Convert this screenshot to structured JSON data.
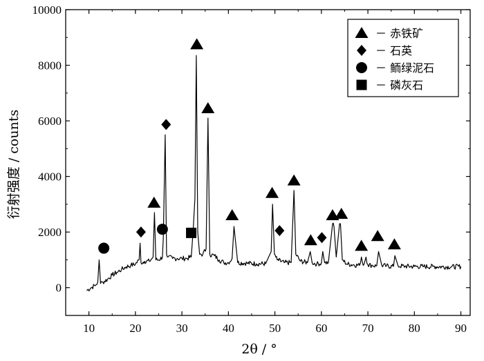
{
  "chart_data": {
    "type": "line",
    "title": "",
    "xlabel": "2θ / °",
    "ylabel": "衍射强度 / counts",
    "xlim": [
      5,
      92
    ],
    "ylim": [
      -1000,
      10000
    ],
    "x_ticks": [
      10,
      20,
      30,
      40,
      50,
      60,
      70,
      80,
      90
    ],
    "y_ticks": [
      0,
      2000,
      4000,
      6000,
      8000,
      10000
    ],
    "x_tick_labels": [
      "10",
      "20",
      "30",
      "40",
      "50",
      "60",
      "70",
      "80",
      "90"
    ],
    "y_tick_labels": [
      "0",
      "2000",
      "4000",
      "6000",
      "8000",
      "10000"
    ],
    "grid": false,
    "legend_position": "top-right",
    "color": "#000000",
    "legend": [
      {
        "marker": "triangle",
        "label": "－ 赤铁矿"
      },
      {
        "marker": "diamond",
        "label": "－ 石英"
      },
      {
        "marker": "circle",
        "label": "－ 鲕绿泥石"
      },
      {
        "marker": "square",
        "label": "－ 磷灰石"
      }
    ],
    "series": [
      {
        "x": [
          9.5,
          10.5,
          11.5,
          11.9,
          12.2,
          12.5,
          13,
          14,
          15,
          16,
          17,
          18,
          19,
          20,
          20.8,
          21,
          21.2,
          22,
          23,
          23.8,
          24.1,
          24.4,
          25,
          25.8,
          26,
          26.4,
          26.7,
          27,
          28,
          29,
          30,
          31,
          32,
          32.4,
          32.8,
          33.1,
          33.4,
          33.8,
          34.5,
          35.2,
          35.6,
          36,
          37,
          38,
          39,
          40,
          40.8,
          41.2,
          42,
          44,
          46,
          48,
          49.2,
          49.5,
          49.9,
          50.5,
          52,
          53.5,
          54.1,
          54.5,
          55.5,
          57,
          57.6,
          58,
          59,
          60,
          60.3,
          60.7,
          61.5,
          62.4,
          62.7,
          63.2,
          63.9,
          64.1,
          64.5,
          65.5,
          67,
          68.2,
          68.6,
          69,
          69.6,
          70,
          71,
          71.9,
          72.3,
          73,
          74,
          75.5,
          75.8,
          76.5,
          78,
          80,
          82,
          84,
          86,
          88,
          90
        ],
        "y": [
          -100,
          0,
          100,
          200,
          1000,
          150,
          200,
          300,
          450,
          550,
          650,
          750,
          800,
          850,
          1000,
          1600,
          900,
          950,
          950,
          1100,
          2700,
          1000,
          1000,
          1100,
          1800,
          5500,
          1200,
          1100,
          1050,
          1050,
          1050,
          1050,
          1100,
          2000,
          3200,
          8350,
          2000,
          1200,
          1200,
          1400,
          6100,
          1200,
          1150,
          1000,
          900,
          900,
          1050,
          2200,
          900,
          880,
          860,
          860,
          1300,
          3000,
          1200,
          1000,
          900,
          900,
          3500,
          1200,
          950,
          900,
          1300,
          900,
          850,
          880,
          1300,
          900,
          900,
          2300,
          2200,
          1100,
          2300,
          2300,
          1000,
          850,
          820,
          800,
          1100,
          800,
          1100,
          820,
          800,
          780,
          1300,
          800,
          780,
          760,
          1150,
          780,
          770,
          760,
          760,
          760,
          750,
          750,
          760
        ]
      }
    ],
    "markers": [
      {
        "type": "circle",
        "x": 13.2,
        "y": 1420
      },
      {
        "type": "diamond",
        "x": 21.2,
        "y": 2000
      },
      {
        "type": "triangle",
        "x": 24.0,
        "y": 3050
      },
      {
        "type": "circle",
        "x": 25.8,
        "y": 2100
      },
      {
        "type": "diamond",
        "x": 26.6,
        "y": 5870
      },
      {
        "type": "square",
        "x": 32.0,
        "y": 1970
      },
      {
        "type": "triangle",
        "x": 33.2,
        "y": 8750
      },
      {
        "type": "triangle",
        "x": 35.6,
        "y": 6450
      },
      {
        "type": "triangle",
        "x": 40.8,
        "y": 2600
      },
      {
        "type": "triangle",
        "x": 49.4,
        "y": 3400
      },
      {
        "type": "diamond",
        "x": 51.0,
        "y": 2050
      },
      {
        "type": "triangle",
        "x": 54.1,
        "y": 3850
      },
      {
        "type": "triangle",
        "x": 57.7,
        "y": 1700
      },
      {
        "type": "diamond",
        "x": 60.1,
        "y": 1800
      },
      {
        "type": "triangle",
        "x": 62.4,
        "y": 2600
      },
      {
        "type": "triangle",
        "x": 64.3,
        "y": 2650
      },
      {
        "type": "triangle",
        "x": 68.6,
        "y": 1500
      },
      {
        "type": "triangle",
        "x": 72.1,
        "y": 1850
      },
      {
        "type": "triangle",
        "x": 75.7,
        "y": 1550
      }
    ]
  }
}
